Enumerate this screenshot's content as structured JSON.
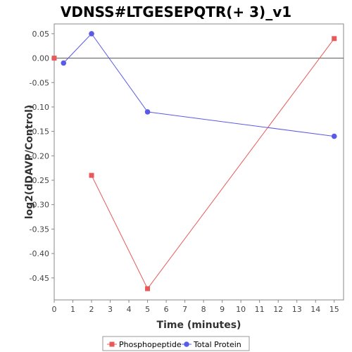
{
  "chart_data": {
    "type": "line",
    "title": "VDNSS#LTGESEPQTR(+ 3)_v1",
    "xlabel": "Time (minutes)",
    "ylabel": "log2(dDAVP/Control)",
    "xlim": [
      0,
      15.5
    ],
    "ylim": [
      -0.495,
      0.07
    ],
    "x_ticks": [
      0,
      1,
      2,
      3,
      4,
      5,
      6,
      7,
      8,
      9,
      10,
      11,
      12,
      13,
      14,
      15
    ],
    "x_tick_labels": [
      "0",
      "1",
      "2",
      "3",
      "4",
      "5",
      "6",
      "7",
      "8",
      "9",
      "10",
      "11",
      "12",
      "13",
      "14",
      "15"
    ],
    "y_ticks": [
      0.05,
      0.0,
      -0.05,
      -0.1,
      -0.15,
      -0.2,
      -0.25,
      -0.3,
      -0.35,
      -0.4,
      -0.45
    ],
    "y_tick_labels": [
      "0.05",
      "0.00",
      "-0.05",
      "-0.10",
      "-0.15",
      "-0.20",
      "-0.25",
      "-0.30",
      "-0.35",
      "-0.40",
      "-0.45"
    ],
    "grid": false,
    "zero_line": true,
    "legend_position": "bottom",
    "series": [
      {
        "name": "Phosphopeptide",
        "color": "#e8595a",
        "marker": "square",
        "segments": [
          [
            {
              "x": 0,
              "y": 0.0
            }
          ],
          [
            {
              "x": 2,
              "y": -0.24
            },
            {
              "x": 5,
              "y": -0.472
            },
            {
              "x": 15,
              "y": 0.04
            }
          ]
        ]
      },
      {
        "name": "Total Protein",
        "color": "#5a5ae8",
        "marker": "circle",
        "segments": [
          [
            {
              "x": 0.5,
              "y": -0.01
            },
            {
              "x": 2,
              "y": 0.05
            },
            {
              "x": 5,
              "y": -0.11
            },
            {
              "x": 15,
              "y": -0.16
            }
          ]
        ]
      }
    ]
  }
}
